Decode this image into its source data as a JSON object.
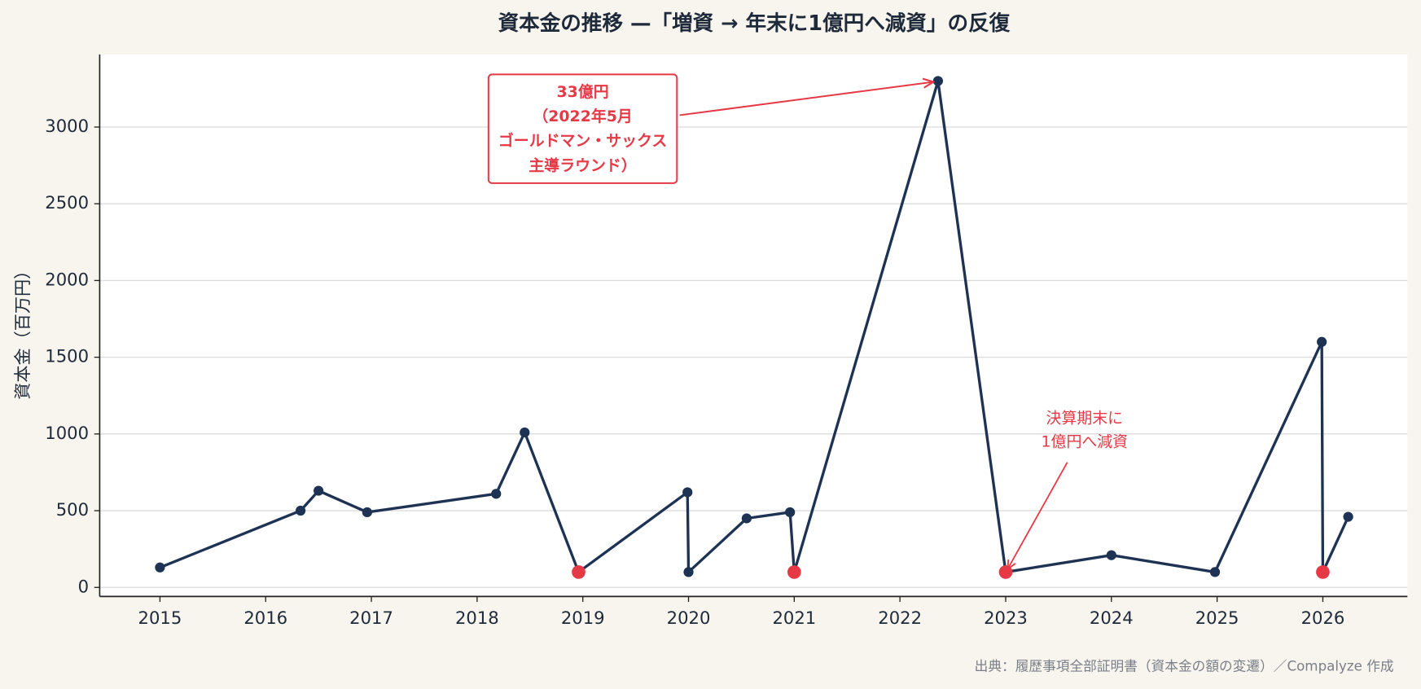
{
  "chart_data": {
    "type": "line",
    "title": "資本金の推移 —「増資 → 年末に1億円へ減資」の反復",
    "y_label": "資本金（百万円）",
    "source": "出典：履歴事項全部証明書（資本金の額の変遷）／Compalyze 作成",
    "series": [
      {
        "color": "#1e3354",
        "x": [
          2015.0,
          2016.33,
          2016.5,
          2016.96,
          2018.18,
          2018.45,
          2018.96,
          2019.99,
          2020.0,
          2020.55,
          2020.96,
          2021.0,
          2022.36,
          2023.0,
          2024.0,
          2024.98,
          2025.99,
          2026.0,
          2026.24
        ],
        "values": [
          130,
          500,
          630,
          490,
          610,
          1010,
          100,
          620,
          100,
          450,
          490,
          100,
          3300,
          100,
          210,
          100,
          1600,
          100,
          460
        ]
      },
      {
        "color": "#e63946",
        "line": false,
        "x": [
          2018.96,
          2021.0,
          2023.0,
          2026.0
        ],
        "values": [
          100,
          100,
          100,
          100
        ]
      }
    ],
    "xlim": [
      2014.43,
      2026.8
    ],
    "ylim": [
      -59,
      3473
    ],
    "xticks": [
      2015,
      2016,
      2017,
      2018,
      2019,
      2020,
      2021,
      2022,
      2023,
      2024,
      2025,
      2026
    ],
    "yticks": [
      0,
      500,
      1000,
      1500,
      2000,
      2500,
      3000
    ],
    "grid": true,
    "annotations": [
      {
        "text": [
          "33億円",
          "（2022年5月",
          "ゴールドマン・サックス",
          "主導ラウンド）"
        ],
        "x": 2022.36,
        "y": 3300,
        "boxed": true
      },
      {
        "text": [
          "決算期末に",
          "1億円へ減資"
        ],
        "x": 2023.0,
        "y": 100,
        "boxed": false
      }
    ]
  }
}
